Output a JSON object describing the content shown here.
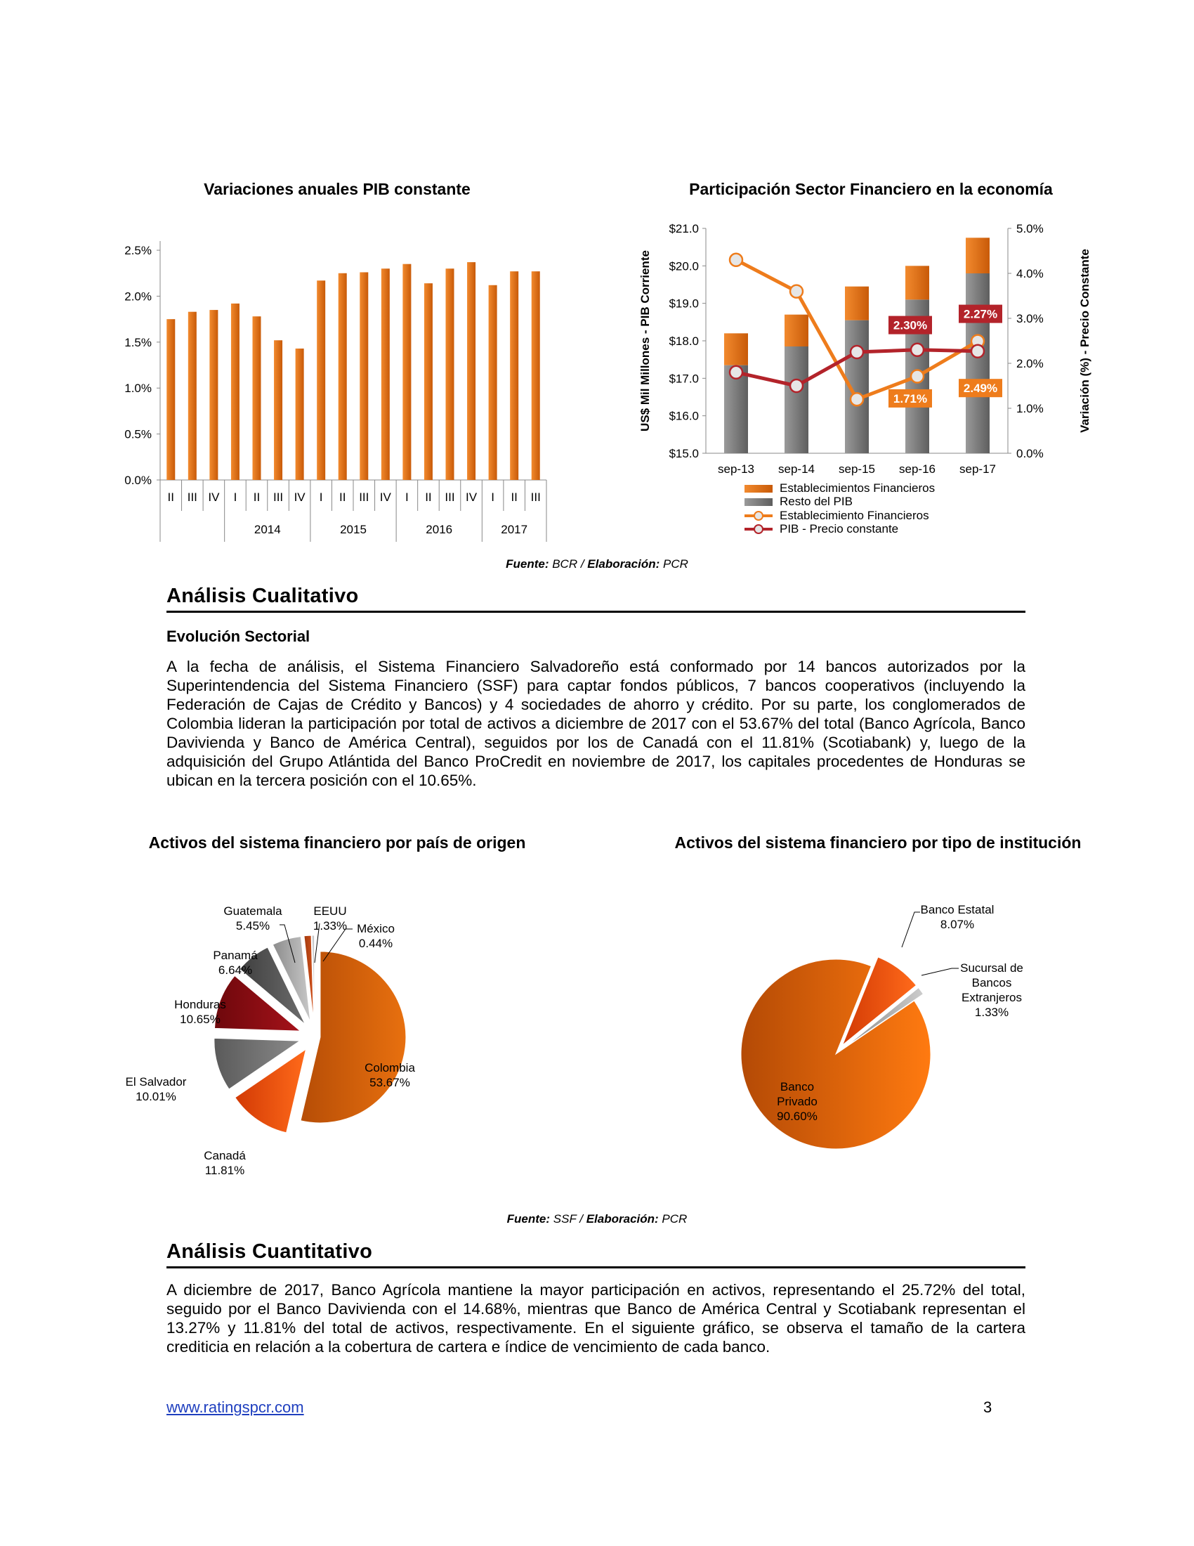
{
  "charts": {
    "pib": {
      "title": "Variaciones anuales PIB constante",
      "color": "#e8700f"
    },
    "participacion": {
      "title": "Participación Sector Financiero en la economía",
      "ylabel_left": "US$ Mil Millones - PIB Corriente",
      "ylabel_right": "Variación (%) - Precio Constante",
      "legend": [
        "Establecimientos Financieros",
        "Resto del PIB",
        "Establecimiento Financieros",
        "PIB - Precio constante"
      ],
      "labels": {
        "a": "2.30%",
        "b": "2.27%",
        "c": "1.71%",
        "d": "2.49%"
      }
    },
    "pais": {
      "title": "Activos del sistema financiero por país de origen"
    },
    "tipo": {
      "title": "Activos del sistema financiero por tipo de institución"
    }
  },
  "chart_data": [
    {
      "type": "bar",
      "title": "Variaciones anuales PIB constante",
      "categories": [
        "II",
        "III",
        "IV",
        "I",
        "II",
        "III",
        "IV",
        "I",
        "II",
        "III",
        "IV",
        "I",
        "II",
        "III",
        "IV",
        "I",
        "II",
        "III"
      ],
      "groups": [
        {
          "label": "2014",
          "start": 3,
          "end": 6
        },
        {
          "label": "2015",
          "start": 7,
          "end": 10
        },
        {
          "label": "2016",
          "start": 11,
          "end": 14
        },
        {
          "label": "2017",
          "start": 15,
          "end": 17
        }
      ],
      "values": [
        1.75,
        1.83,
        1.85,
        1.92,
        1.78,
        1.52,
        1.43,
        2.17,
        2.25,
        2.26,
        2.3,
        2.35,
        2.14,
        2.3,
        2.37,
        2.12,
        2.27,
        2.27
      ],
      "yticks": [
        "0.0%",
        "0.5%",
        "1.0%",
        "1.5%",
        "2.0%",
        "2.5%"
      ],
      "ylim": [
        0,
        2.6
      ]
    },
    {
      "type": "bar",
      "title": "Participación Sector Financiero en la economía",
      "categories": [
        "sep-13",
        "sep-14",
        "sep-15",
        "sep-16",
        "sep-17"
      ],
      "ylim": [
        15,
        21
      ],
      "y2lim": [
        0,
        5
      ],
      "yticks_left": [
        "$15.0",
        "$16.0",
        "$17.0",
        "$18.0",
        "$19.0",
        "$20.0",
        "$21.0"
      ],
      "yticks_right": [
        "0.0%",
        "1.0%",
        "2.0%",
        "3.0%",
        "4.0%",
        "5.0%"
      ],
      "series": [
        {
          "name": "Resto del PIB",
          "kind": "stacked-bar",
          "values": [
            17.35,
            17.85,
            18.55,
            19.1,
            19.8
          ]
        },
        {
          "name": "Establecimientos Financieros",
          "kind": "stacked-bar",
          "values": [
            0.85,
            0.85,
            0.9,
            0.9,
            0.95
          ]
        },
        {
          "name": "Establecimiento Financieros",
          "kind": "line",
          "axis": "right",
          "values": [
            4.3,
            3.6,
            1.2,
            1.71,
            2.49
          ]
        },
        {
          "name": "PIB - Precio constante",
          "kind": "line",
          "axis": "right",
          "values": [
            1.8,
            1.5,
            2.25,
            2.3,
            2.27
          ]
        }
      ]
    },
    {
      "type": "pie",
      "title": "Activos del sistema financiero por país de origen",
      "slices": [
        {
          "name": "Colombia",
          "value": 53.67,
          "label": "53.67%"
        },
        {
          "name": "Canadá",
          "value": 11.81,
          "label": "11.81%"
        },
        {
          "name": "El Salvador",
          "value": 10.01,
          "label": "10.01%"
        },
        {
          "name": "Honduras",
          "value": 10.65,
          "label": "10.65%"
        },
        {
          "name": "Panamá",
          "value": 6.64,
          "label": "6.64%"
        },
        {
          "name": "Guatemala",
          "value": 5.45,
          "label": "5.45%"
        },
        {
          "name": "EEUU",
          "value": 1.33,
          "label": "1.33%"
        },
        {
          "name": "México",
          "value": 0.44,
          "label": "0.44%"
        }
      ]
    },
    {
      "type": "pie",
      "title": "Activos del sistema financiero por tipo de institución",
      "slices": [
        {
          "name": "Banco Privado",
          "value": 90.6,
          "label": "90.60%"
        },
        {
          "name": "Banco Estatal",
          "value": 8.07,
          "label": "8.07%"
        },
        {
          "name": "Sucursal de Bancos Extranjeros",
          "value": 1.33,
          "label": "1.33%"
        }
      ]
    }
  ],
  "pie_labels": {
    "pais": {
      "colombia": [
        "Colombia",
        "53.67%"
      ],
      "canada": [
        "Canadá",
        "11.81%"
      ],
      "elsalvador": [
        "El Salvador",
        "10.01%"
      ],
      "honduras": [
        "Honduras",
        "10.65%"
      ],
      "panama": [
        "Panamá",
        "6.64%"
      ],
      "guatemala": [
        "Guatemala",
        "5.45%"
      ],
      "eeuu": [
        "EEUU",
        "1.33%"
      ],
      "mexico": [
        "México",
        "0.44%"
      ]
    },
    "tipo": {
      "privado": [
        "Banco",
        "Privado",
        "90.60%"
      ],
      "estatal": [
        "Banco Estatal",
        "8.07%"
      ],
      "sucursal": [
        "Sucursal de",
        "Bancos",
        "Extranjeros",
        "1.33%"
      ]
    }
  },
  "source1": {
    "fuente_label": "Fuente:",
    "fuente": "BCR",
    "sep": " / ",
    "elab_label": "Elaboración:",
    "elab": "PCR"
  },
  "source2": {
    "fuente_label": "Fuente:",
    "fuente": "SSF",
    "sep": " / ",
    "elab_label": "Elaboración:",
    "elab": "PCR"
  },
  "section1": {
    "title": "Análisis Cualitativo",
    "subtitle": "Evolución Sectorial",
    "paragraph": "A la fecha de análisis, el Sistema Financiero Salvadoreño está conformado por 14 bancos autorizados por la Superintendencia del Sistema Financiero (SSF) para captar fondos públicos, 7 bancos cooperativos (incluyendo la Federación de Cajas de Crédito y Bancos) y 4 sociedades de ahorro y crédito. Por su parte, los conglomerados de Colombia lideran la participación por total de activos a diciembre de 2017 con el 53.67% del total (Banco Agrícola, Banco Davivienda y Banco de América Central), seguidos por los de Canadá con el 11.81% (Scotiabank) y, luego de la adquisición del Grupo Atlántida del Banco ProCredit en noviembre de 2017, los capitales procedentes de Honduras se ubican en la tercera posición con el 10.65%."
  },
  "section2": {
    "title": "Análisis Cuantitativo",
    "paragraph": "A diciembre de 2017, Banco Agrícola mantiene la mayor participación en activos, representando el 25.72% del total, seguido por el Banco Davivienda con el 14.68%, mientras que Banco de América Central y Scotiabank representan el 13.27% y 11.81% del total de activos, respectivamente. En el siguiente gráfico, se observa el tamaño de la cartera crediticia en relación a la cobertura de cartera e índice de vencimiento de cada banco."
  },
  "footer": {
    "link": "www.ratingspcr.com",
    "page": "3"
  }
}
